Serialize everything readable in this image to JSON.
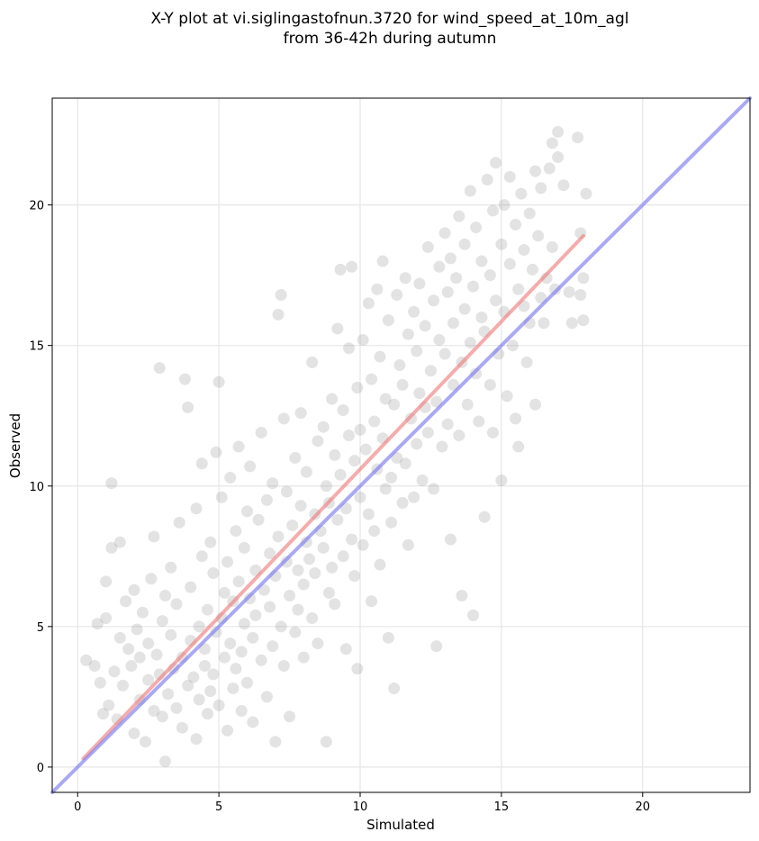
{
  "chart_data": {
    "type": "scatter",
    "title": "X-Y plot at vi.siglingastofnun.3720 for wind_speed_at_10m_agl",
    "subtitle": "from 36-42h during autumn",
    "xlabel": "Simulated",
    "ylabel": "Observed",
    "xlim": [
      -0.9,
      23.8
    ],
    "ylim": [
      -0.9,
      23.8
    ],
    "xticks": [
      0,
      5,
      10,
      15,
      20
    ],
    "yticks": [
      0,
      5,
      10,
      15,
      20
    ],
    "xtick_labels": [
      "0",
      "5",
      "10",
      "15",
      "20"
    ],
    "ytick_labels": [
      "0",
      "5",
      "10",
      "15",
      "20"
    ],
    "grid": true,
    "colors": {
      "points": "#808080",
      "fit_line": "#f08080",
      "identity_line": "#7b7bf0",
      "grid": "#e6e6e6"
    },
    "lines": [
      {
        "kind": "regression-fit",
        "x": [
          0.2,
          17.9
        ],
        "y": [
          0.3,
          18.9
        ]
      },
      {
        "kind": "identity",
        "x": [
          -0.9,
          23.8
        ],
        "y": [
          -0.9,
          23.8
        ]
      }
    ],
    "points": [
      [
        0.3,
        3.8
      ],
      [
        0.6,
        3.6
      ],
      [
        0.7,
        5.1
      ],
      [
        0.8,
        3.0
      ],
      [
        0.9,
        1.9
      ],
      [
        1.0,
        5.3
      ],
      [
        1.0,
        6.6
      ],
      [
        1.1,
        2.2
      ],
      [
        1.2,
        7.8
      ],
      [
        1.2,
        10.1
      ],
      [
        1.3,
        3.4
      ],
      [
        1.4,
        1.7
      ],
      [
        1.5,
        8.0
      ],
      [
        1.5,
        4.6
      ],
      [
        1.6,
        2.9
      ],
      [
        1.7,
        5.9
      ],
      [
        1.8,
        4.2
      ],
      [
        1.9,
        3.6
      ],
      [
        2.0,
        6.3
      ],
      [
        2.0,
        1.2
      ],
      [
        2.1,
        4.9
      ],
      [
        2.2,
        2.4
      ],
      [
        2.2,
        3.9
      ],
      [
        2.3,
        5.5
      ],
      [
        2.4,
        0.9
      ],
      [
        2.5,
        4.4
      ],
      [
        2.5,
        3.1
      ],
      [
        2.6,
        6.7
      ],
      [
        2.7,
        2.0
      ],
      [
        2.7,
        8.2
      ],
      [
        2.8,
        4.0
      ],
      [
        2.9,
        3.3
      ],
      [
        2.9,
        14.2
      ],
      [
        3.0,
        5.2
      ],
      [
        3.0,
        1.8
      ],
      [
        3.1,
        6.1
      ],
      [
        3.1,
        0.2
      ],
      [
        3.2,
        2.6
      ],
      [
        3.3,
        4.7
      ],
      [
        3.3,
        7.1
      ],
      [
        3.4,
        3.5
      ],
      [
        3.5,
        2.1
      ],
      [
        3.5,
        5.8
      ],
      [
        3.6,
        8.7
      ],
      [
        3.7,
        1.4
      ],
      [
        3.7,
        3.9
      ],
      [
        3.8,
        13.8
      ],
      [
        3.9,
        12.8
      ],
      [
        3.9,
        2.9
      ],
      [
        4.0,
        4.5
      ],
      [
        4.0,
        6.4
      ],
      [
        4.1,
        3.2
      ],
      [
        4.2,
        9.2
      ],
      [
        4.2,
        1.0
      ],
      [
        4.3,
        5.0
      ],
      [
        4.3,
        2.4
      ],
      [
        4.4,
        10.8
      ],
      [
        4.4,
        7.5
      ],
      [
        4.5,
        3.6
      ],
      [
        4.5,
        4.2
      ],
      [
        4.6,
        5.6
      ],
      [
        4.6,
        1.9
      ],
      [
        4.7,
        8.0
      ],
      [
        4.7,
        2.7
      ],
      [
        4.8,
        6.9
      ],
      [
        4.8,
        3.3
      ],
      [
        4.9,
        11.2
      ],
      [
        4.9,
        4.8
      ],
      [
        5.0,
        13.7
      ],
      [
        5.0,
        2.2
      ],
      [
        5.1,
        5.3
      ],
      [
        5.1,
        9.6
      ],
      [
        5.2,
        3.9
      ],
      [
        5.2,
        6.2
      ],
      [
        5.3,
        1.3
      ],
      [
        5.3,
        7.3
      ],
      [
        5.4,
        4.4
      ],
      [
        5.4,
        10.3
      ],
      [
        5.5,
        2.8
      ],
      [
        5.5,
        5.9
      ],
      [
        5.6,
        8.4
      ],
      [
        5.6,
        3.5
      ],
      [
        5.7,
        6.6
      ],
      [
        5.7,
        11.4
      ],
      [
        5.8,
        4.1
      ],
      [
        5.8,
        2.0
      ],
      [
        5.9,
        7.8
      ],
      [
        5.9,
        5.1
      ],
      [
        6.0,
        9.1
      ],
      [
        6.0,
        3.0
      ],
      [
        6.1,
        6.0
      ],
      [
        6.1,
        10.7
      ],
      [
        6.2,
        4.6
      ],
      [
        6.2,
        1.6
      ],
      [
        6.3,
        7.0
      ],
      [
        6.3,
        5.4
      ],
      [
        6.4,
        8.8
      ],
      [
        6.5,
        3.8
      ],
      [
        6.5,
        11.9
      ],
      [
        6.6,
        6.3
      ],
      [
        6.7,
        2.5
      ],
      [
        6.7,
        9.5
      ],
      [
        6.8,
        5.7
      ],
      [
        6.8,
        7.6
      ],
      [
        6.9,
        4.3
      ],
      [
        6.9,
        10.1
      ],
      [
        7.0,
        0.9
      ],
      [
        7.0,
        6.8
      ],
      [
        7.1,
        16.1
      ],
      [
        7.1,
        8.2
      ],
      [
        7.2,
        16.8
      ],
      [
        7.2,
        5.0
      ],
      [
        7.3,
        12.4
      ],
      [
        7.3,
        3.6
      ],
      [
        7.4,
        7.3
      ],
      [
        7.4,
        9.8
      ],
      [
        7.5,
        6.1
      ],
      [
        7.5,
        1.8
      ],
      [
        7.6,
        8.6
      ],
      [
        7.7,
        4.8
      ],
      [
        7.7,
        11.0
      ],
      [
        7.8,
        7.0
      ],
      [
        7.8,
        5.6
      ],
      [
        7.9,
        9.3
      ],
      [
        7.9,
        12.6
      ],
      [
        8.0,
        6.5
      ],
      [
        8.0,
        3.9
      ],
      [
        8.1,
        8.0
      ],
      [
        8.1,
        10.5
      ],
      [
        8.2,
        7.4
      ],
      [
        8.3,
        5.3
      ],
      [
        8.3,
        14.4
      ],
      [
        8.4,
        9.0
      ],
      [
        8.4,
        6.9
      ],
      [
        8.5,
        11.6
      ],
      [
        8.5,
        4.4
      ],
      [
        8.6,
        8.4
      ],
      [
        8.7,
        12.1
      ],
      [
        8.7,
        7.8
      ],
      [
        8.8,
        0.9
      ],
      [
        8.8,
        10.0
      ],
      [
        8.9,
        6.2
      ],
      [
        8.9,
        9.4
      ],
      [
        9.0,
        13.1
      ],
      [
        9.0,
        7.1
      ],
      [
        9.1,
        11.1
      ],
      [
        9.1,
        5.8
      ],
      [
        9.2,
        8.8
      ],
      [
        9.2,
        15.6
      ],
      [
        9.3,
        17.7
      ],
      [
        9.3,
        10.4
      ],
      [
        9.4,
        7.5
      ],
      [
        9.4,
        12.7
      ],
      [
        9.5,
        9.2
      ],
      [
        9.5,
        4.2
      ],
      [
        9.6,
        11.8
      ],
      [
        9.6,
        14.9
      ],
      [
        9.7,
        8.1
      ],
      [
        9.7,
        17.8
      ],
      [
        9.8,
        10.9
      ],
      [
        9.8,
        6.8
      ],
      [
        9.9,
        13.5
      ],
      [
        9.9,
        3.5
      ],
      [
        10.0,
        9.6
      ],
      [
        10.0,
        12.0
      ],
      [
        10.1,
        15.2
      ],
      [
        10.1,
        7.9
      ],
      [
        10.2,
        11.3
      ],
      [
        10.3,
        16.5
      ],
      [
        10.3,
        9.0
      ],
      [
        10.4,
        13.8
      ],
      [
        10.4,
        5.9
      ],
      [
        10.5,
        12.3
      ],
      [
        10.5,
        8.4
      ],
      [
        10.6,
        17.0
      ],
      [
        10.6,
        10.6
      ],
      [
        10.7,
        14.6
      ],
      [
        10.7,
        7.2
      ],
      [
        10.8,
        11.7
      ],
      [
        10.8,
        18.0
      ],
      [
        10.9,
        9.9
      ],
      [
        10.9,
        13.1
      ],
      [
        11.0,
        4.6
      ],
      [
        11.0,
        15.9
      ],
      [
        11.1,
        10.3
      ],
      [
        11.1,
        8.7
      ],
      [
        11.2,
        12.9
      ],
      [
        11.2,
        2.8
      ],
      [
        11.3,
        16.8
      ],
      [
        11.3,
        11.0
      ],
      [
        11.4,
        14.3
      ],
      [
        11.5,
        9.4
      ],
      [
        11.5,
        13.6
      ],
      [
        11.6,
        17.4
      ],
      [
        11.6,
        10.8
      ],
      [
        11.7,
        7.9
      ],
      [
        11.7,
        15.4
      ],
      [
        11.8,
        12.4
      ],
      [
        11.9,
        16.2
      ],
      [
        11.9,
        9.6
      ],
      [
        12.0,
        14.8
      ],
      [
        12.0,
        11.5
      ],
      [
        12.1,
        13.3
      ],
      [
        12.1,
        17.2
      ],
      [
        12.2,
        10.2
      ],
      [
        12.3,
        15.7
      ],
      [
        12.3,
        12.8
      ],
      [
        12.4,
        18.5
      ],
      [
        12.4,
        11.9
      ],
      [
        12.5,
        14.1
      ],
      [
        12.6,
        16.6
      ],
      [
        12.6,
        9.9
      ],
      [
        12.7,
        4.3
      ],
      [
        12.7,
        13.0
      ],
      [
        12.8,
        17.8
      ],
      [
        12.8,
        15.2
      ],
      [
        12.9,
        11.4
      ],
      [
        13.0,
        19.0
      ],
      [
        13.0,
        14.7
      ],
      [
        13.1,
        16.9
      ],
      [
        13.1,
        12.2
      ],
      [
        13.2,
        8.1
      ],
      [
        13.2,
        18.1
      ],
      [
        13.3,
        15.8
      ],
      [
        13.3,
        13.6
      ],
      [
        13.4,
        17.4
      ],
      [
        13.5,
        11.8
      ],
      [
        13.5,
        19.6
      ],
      [
        13.6,
        6.1
      ],
      [
        13.6,
        14.4
      ],
      [
        13.7,
        16.3
      ],
      [
        13.7,
        18.6
      ],
      [
        13.8,
        12.9
      ],
      [
        13.9,
        15.1
      ],
      [
        13.9,
        20.5
      ],
      [
        14.0,
        5.4
      ],
      [
        14.0,
        17.1
      ],
      [
        14.1,
        14.0
      ],
      [
        14.1,
        19.2
      ],
      [
        14.2,
        12.3
      ],
      [
        14.3,
        16.0
      ],
      [
        14.3,
        18.0
      ],
      [
        14.4,
        8.9
      ],
      [
        14.4,
        15.5
      ],
      [
        14.5,
        20.9
      ],
      [
        14.6,
        13.6
      ],
      [
        14.6,
        17.5
      ],
      [
        14.7,
        19.8
      ],
      [
        14.7,
        11.9
      ],
      [
        14.8,
        16.6
      ],
      [
        14.8,
        21.5
      ],
      [
        14.9,
        14.7
      ],
      [
        15.0,
        18.6
      ],
      [
        15.0,
        10.2
      ],
      [
        15.1,
        16.2
      ],
      [
        15.1,
        20.0
      ],
      [
        15.2,
        13.2
      ],
      [
        15.3,
        17.9
      ],
      [
        15.3,
        21.0
      ],
      [
        15.4,
        15.0
      ],
      [
        15.5,
        19.3
      ],
      [
        15.5,
        12.4
      ],
      [
        15.6,
        17.0
      ],
      [
        15.6,
        11.4
      ],
      [
        15.7,
        20.4
      ],
      [
        15.8,
        16.4
      ],
      [
        15.8,
        18.4
      ],
      [
        15.9,
        14.4
      ],
      [
        16.0,
        19.7
      ],
      [
        16.0,
        15.8
      ],
      [
        16.1,
        17.7
      ],
      [
        16.2,
        21.2
      ],
      [
        16.2,
        12.9
      ],
      [
        16.3,
        18.9
      ],
      [
        16.4,
        16.7
      ],
      [
        16.4,
        20.6
      ],
      [
        16.5,
        15.8
      ],
      [
        16.6,
        17.4
      ],
      [
        16.7,
        21.3
      ],
      [
        16.8,
        22.2
      ],
      [
        16.8,
        18.5
      ],
      [
        16.9,
        17.0
      ],
      [
        17.0,
        21.7
      ],
      [
        17.0,
        22.6
      ],
      [
        17.2,
        20.7
      ],
      [
        17.4,
        16.9
      ],
      [
        17.5,
        15.8
      ],
      [
        17.7,
        22.4
      ],
      [
        17.8,
        19.0
      ],
      [
        17.8,
        16.8
      ],
      [
        17.9,
        15.9
      ],
      [
        17.9,
        17.4
      ],
      [
        18.0,
        20.4
      ]
    ]
  }
}
